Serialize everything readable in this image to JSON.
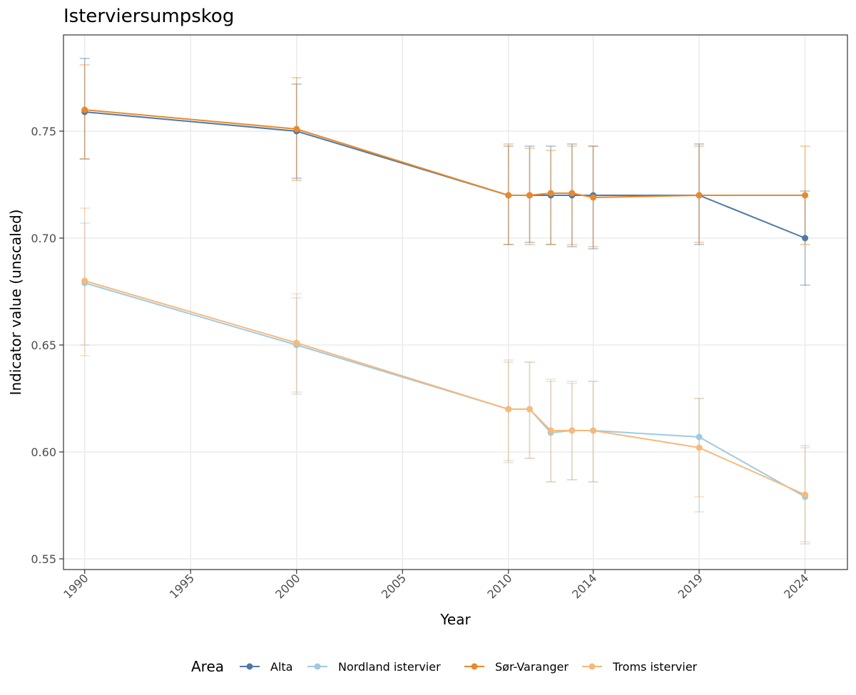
{
  "chart_data": {
    "type": "line",
    "title": "Isterviersumpskog",
    "xlabel": "Year",
    "ylabel": "Indicator value (unscaled)",
    "x_ticks": [
      1990,
      1995,
      2000,
      2005,
      2010,
      2014,
      2019,
      2024
    ],
    "y_ticks": [
      0.55,
      0.6,
      0.65,
      0.7,
      0.75
    ],
    "y_tick_labels": [
      "0.55",
      "0.60",
      "0.65",
      "0.70",
      "0.75"
    ],
    "xlim": [
      1989,
      2026
    ],
    "ylim": [
      0.545,
      0.795
    ],
    "grid": true,
    "legend": {
      "title": "Area",
      "position": "bottom"
    },
    "series": [
      {
        "name": "Alta",
        "color": "#4e79a7",
        "points": [
          {
            "x": 1990,
            "y": 0.759,
            "low": 0.737,
            "high": 0.784
          },
          {
            "x": 2000,
            "y": 0.75,
            "low": 0.728,
            "high": 0.772
          },
          {
            "x": 2010,
            "y": 0.72,
            "low": 0.697,
            "high": 0.743
          },
          {
            "x": 2011,
            "y": 0.72,
            "low": 0.698,
            "high": 0.743
          },
          {
            "x": 2012,
            "y": 0.72,
            "low": 0.697,
            "high": 0.743
          },
          {
            "x": 2013,
            "y": 0.72,
            "low": 0.696,
            "high": 0.744
          },
          {
            "x": 2014,
            "y": 0.72,
            "low": 0.695,
            "high": 0.743
          },
          {
            "x": 2019,
            "y": 0.72,
            "low": 0.697,
            "high": 0.744
          },
          {
            "x": 2024,
            "y": 0.7,
            "low": 0.678,
            "high": 0.722
          }
        ]
      },
      {
        "name": "Nordland istervier",
        "color": "#9ecae1",
        "points": [
          {
            "x": 1990,
            "y": 0.679,
            "low": 0.65,
            "high": 0.707
          },
          {
            "x": 2000,
            "y": 0.65,
            "low": 0.627,
            "high": 0.672
          },
          {
            "x": 2010,
            "y": 0.62,
            "low": 0.595,
            "high": 0.642
          },
          {
            "x": 2011,
            "y": 0.62,
            "low": 0.597,
            "high": 0.642
          },
          {
            "x": 2012,
            "y": 0.609,
            "low": 0.586,
            "high": 0.633
          },
          {
            "x": 2013,
            "y": 0.61,
            "low": 0.587,
            "high": 0.633
          },
          {
            "x": 2014,
            "y": 0.61,
            "low": 0.586,
            "high": 0.633
          },
          {
            "x": 2019,
            "y": 0.607,
            "low": 0.572,
            "high": 0.625
          },
          {
            "x": 2024,
            "y": 0.579,
            "low": 0.557,
            "high": 0.603
          }
        ]
      },
      {
        "name": "Sør-Varanger",
        "color": "#e8892b",
        "points": [
          {
            "x": 1990,
            "y": 0.76,
            "low": 0.737,
            "high": 0.781
          },
          {
            "x": 2000,
            "y": 0.751,
            "low": 0.727,
            "high": 0.775
          },
          {
            "x": 2010,
            "y": 0.72,
            "low": 0.697,
            "high": 0.744
          },
          {
            "x": 2011,
            "y": 0.72,
            "low": 0.697,
            "high": 0.742
          },
          {
            "x": 2012,
            "y": 0.721,
            "low": 0.697,
            "high": 0.741
          },
          {
            "x": 2013,
            "y": 0.721,
            "low": 0.697,
            "high": 0.743
          },
          {
            "x": 2014,
            "y": 0.719,
            "low": 0.696,
            "high": 0.743
          },
          {
            "x": 2019,
            "y": 0.72,
            "low": 0.698,
            "high": 0.743
          },
          {
            "x": 2024,
            "y": 0.72,
            "low": 0.697,
            "high": 0.743
          }
        ]
      },
      {
        "name": "Troms istervier",
        "color": "#f7b97a",
        "points": [
          {
            "x": 1990,
            "y": 0.68,
            "low": 0.645,
            "high": 0.714
          },
          {
            "x": 2000,
            "y": 0.651,
            "low": 0.628,
            "high": 0.674
          },
          {
            "x": 2010,
            "y": 0.62,
            "low": 0.596,
            "high": 0.643
          },
          {
            "x": 2011,
            "y": 0.62,
            "low": 0.597,
            "high": 0.642
          },
          {
            "x": 2012,
            "y": 0.61,
            "low": 0.586,
            "high": 0.634
          },
          {
            "x": 2013,
            "y": 0.61,
            "low": 0.587,
            "high": 0.632
          },
          {
            "x": 2014,
            "y": 0.61,
            "low": 0.586,
            "high": 0.633
          },
          {
            "x": 2019,
            "y": 0.602,
            "low": 0.579,
            "high": 0.625
          },
          {
            "x": 2024,
            "y": 0.58,
            "low": 0.558,
            "high": 0.602
          }
        ]
      }
    ]
  }
}
